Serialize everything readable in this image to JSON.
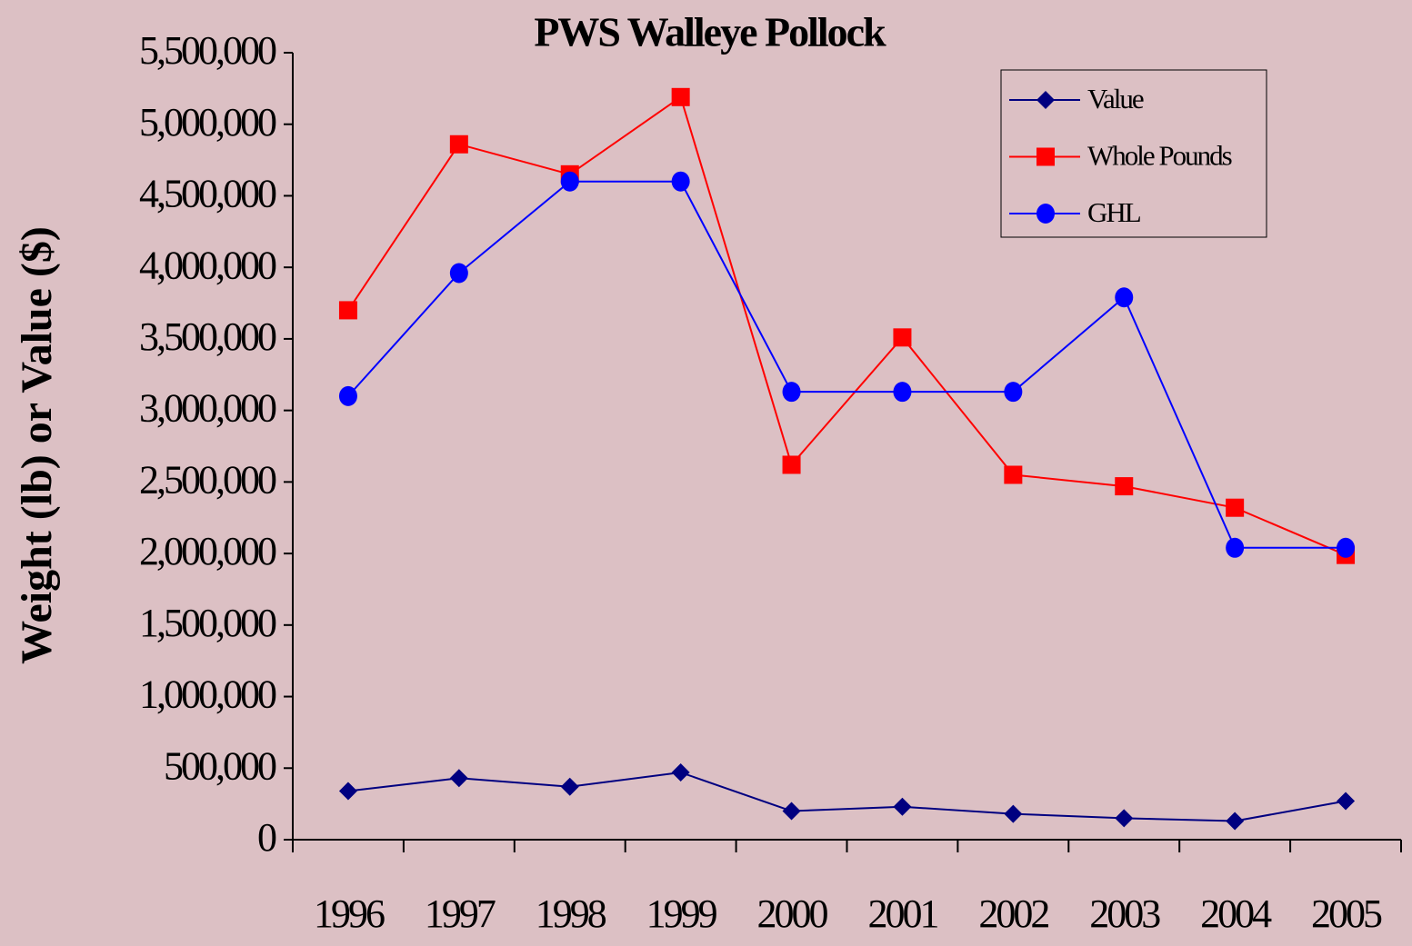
{
  "chart_data": {
    "type": "line",
    "title": "PWS Walleye Pollock",
    "ylabel": "Weight (lb) or Value ($)",
    "categories": [
      "1996",
      "1997",
      "1998",
      "1999",
      "2000",
      "2001",
      "2002",
      "2003",
      "2004",
      "2005"
    ],
    "series": [
      {
        "name": "Value",
        "color": "#000080",
        "marker": "diamond",
        "values": [
          340000,
          430000,
          370000,
          470000,
          200000,
          230000,
          180000,
          150000,
          130000,
          270000
        ]
      },
      {
        "name": "Whole Pounds",
        "color": "#ff0000",
        "marker": "square",
        "values": [
          3700000,
          4860000,
          4650000,
          5190000,
          2620000,
          3510000,
          2550000,
          2470000,
          2320000,
          1990000
        ]
      },
      {
        "name": "GHL",
        "color": "#0000ff",
        "marker": "circle",
        "values": [
          3100000,
          3960000,
          4600000,
          4600000,
          3130000,
          3130000,
          3130000,
          3790000,
          2040000,
          2040000
        ]
      }
    ],
    "ylim": [
      0,
      5500000
    ],
    "yticks": [
      0,
      {
        "value": 500000,
        "label": "500,000"
      },
      {
        "value": 1000000,
        "label": "1,000,000"
      },
      {
        "value": 1500000,
        "label": "1,500,000"
      },
      {
        "value": 2000000,
        "label": "2,000,000"
      },
      {
        "value": 2500000,
        "label": "2,500,000"
      },
      {
        "value": 3000000,
        "label": "3,000,000"
      },
      {
        "value": 3500000,
        "label": "3,500,000"
      },
      {
        "value": 4000000,
        "label": "4,000,000"
      },
      {
        "value": 4500000,
        "label": "4,500,000"
      },
      {
        "value": 5000000,
        "label": "5,000,000"
      },
      {
        "value": 5500000,
        "label": "5,500,000"
      }
    ],
    "grid": false,
    "legend": "upper right"
  }
}
